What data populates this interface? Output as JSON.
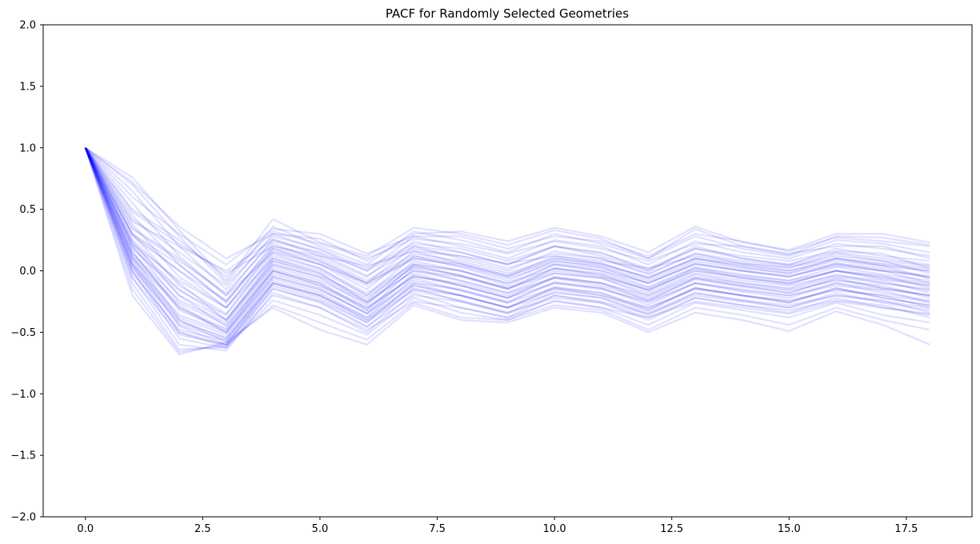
{
  "chart_data": {
    "type": "line",
    "title": "PACF for Randomly Selected Geometries",
    "xlabel": "",
    "ylabel": "",
    "xlim": [
      -0.9,
      18.9
    ],
    "ylim": [
      -2.0,
      2.0
    ],
    "x_ticks": [
      0.0,
      2.5,
      5.0,
      7.5,
      10.0,
      12.5,
      15.0,
      17.5
    ],
    "x_tick_labels": [
      "0.0",
      "2.5",
      "5.0",
      "7.5",
      "10.0",
      "12.5",
      "15.0",
      "17.5"
    ],
    "y_ticks": [
      -2.0,
      -1.5,
      -1.0,
      -0.5,
      0.0,
      0.5,
      1.0,
      1.5,
      2.0
    ],
    "y_tick_labels": [
      "−2.0",
      "−1.5",
      "−1.0",
      "−0.5",
      "0.0",
      "0.5",
      "1.0",
      "1.5",
      "2.0"
    ],
    "grid": false,
    "line_color": "#0000ff",
    "line_alpha": 0.12,
    "x": [
      0,
      1,
      2,
      3,
      4,
      5,
      6,
      7,
      8,
      9,
      10,
      11,
      12,
      13,
      14,
      15,
      16,
      17,
      18
    ],
    "series": [
      {
        "values": [
          1.0,
          0.76,
          0.33,
          -0.08,
          0.42,
          0.23,
          0.12,
          0.35,
          0.3,
          0.21,
          0.33,
          0.26,
          0.1,
          0.34,
          0.2,
          0.13,
          0.28,
          0.27,
          0.21
        ]
      },
      {
        "values": [
          1.0,
          0.7,
          0.28,
          -0.1,
          0.36,
          0.2,
          0.05,
          0.32,
          0.25,
          0.15,
          0.3,
          0.22,
          0.1,
          0.28,
          0.18,
          0.12,
          0.25,
          0.22,
          0.15
        ]
      },
      {
        "values": [
          1.0,
          0.65,
          0.2,
          -0.15,
          0.3,
          0.17,
          0.0,
          0.28,
          0.2,
          0.1,
          0.25,
          0.2,
          0.05,
          0.24,
          0.15,
          0.1,
          0.22,
          0.18,
          0.12
        ]
      },
      {
        "values": [
          1.0,
          0.55,
          0.12,
          -0.2,
          0.26,
          0.12,
          -0.05,
          0.24,
          0.15,
          0.05,
          0.2,
          0.15,
          0.0,
          0.18,
          0.1,
          0.05,
          0.18,
          0.12,
          0.08
        ]
      },
      {
        "values": [
          1.0,
          0.45,
          0.05,
          -0.26,
          0.22,
          0.08,
          -0.1,
          0.2,
          0.1,
          0.0,
          0.16,
          0.1,
          -0.03,
          0.14,
          0.06,
          0.02,
          0.14,
          0.08,
          0.04
        ]
      },
      {
        "values": [
          1.0,
          0.38,
          -0.05,
          -0.3,
          0.18,
          0.05,
          -0.15,
          0.16,
          0.06,
          -0.04,
          0.12,
          0.06,
          -0.06,
          0.1,
          0.03,
          -0.02,
          0.1,
          0.04,
          0.0
        ]
      },
      {
        "values": [
          1.0,
          0.3,
          -0.12,
          -0.35,
          0.14,
          0.02,
          -0.2,
          0.12,
          0.03,
          -0.08,
          0.08,
          0.03,
          -0.1,
          0.06,
          0.0,
          -0.05,
          0.06,
          0.0,
          -0.04
        ]
      },
      {
        "values": [
          1.0,
          0.24,
          -0.2,
          -0.4,
          0.1,
          -0.02,
          -0.24,
          0.08,
          0.0,
          -0.12,
          0.05,
          0.0,
          -0.13,
          0.03,
          -0.03,
          -0.08,
          0.03,
          -0.03,
          -0.08
        ]
      },
      {
        "values": [
          1.0,
          0.2,
          -0.26,
          -0.44,
          0.06,
          -0.06,
          -0.28,
          0.05,
          -0.04,
          -0.15,
          0.02,
          -0.03,
          -0.16,
          0.0,
          -0.06,
          -0.11,
          0.0,
          -0.07,
          -0.12
        ]
      },
      {
        "values": [
          1.0,
          0.16,
          -0.32,
          -0.48,
          0.02,
          -0.1,
          -0.32,
          0.02,
          -0.08,
          -0.18,
          -0.02,
          -0.06,
          -0.2,
          -0.03,
          -0.1,
          -0.14,
          -0.03,
          -0.1,
          -0.16
        ]
      },
      {
        "values": [
          1.0,
          0.12,
          -0.38,
          -0.52,
          -0.02,
          -0.14,
          -0.35,
          -0.02,
          -0.12,
          -0.22,
          -0.05,
          -0.1,
          -0.24,
          -0.07,
          -0.13,
          -0.18,
          -0.07,
          -0.14,
          -0.2
        ]
      },
      {
        "values": [
          1.0,
          0.08,
          -0.44,
          -0.56,
          -0.06,
          -0.18,
          -0.38,
          -0.06,
          -0.16,
          -0.26,
          -0.09,
          -0.14,
          -0.28,
          -0.1,
          -0.17,
          -0.22,
          -0.1,
          -0.18,
          -0.24
        ]
      },
      {
        "values": [
          1.0,
          0.04,
          -0.5,
          -0.6,
          -0.1,
          -0.22,
          -0.42,
          -0.1,
          -0.2,
          -0.3,
          -0.13,
          -0.18,
          -0.32,
          -0.14,
          -0.2,
          -0.26,
          -0.14,
          -0.22,
          -0.28
        ]
      },
      {
        "values": [
          1.0,
          0.0,
          -0.55,
          -0.63,
          -0.14,
          -0.26,
          -0.46,
          -0.14,
          -0.25,
          -0.34,
          -0.17,
          -0.22,
          -0.36,
          -0.18,
          -0.24,
          -0.3,
          -0.18,
          -0.26,
          -0.32
        ]
      },
      {
        "values": [
          1.0,
          -0.05,
          -0.6,
          -0.65,
          -0.18,
          -0.3,
          -0.5,
          -0.18,
          -0.3,
          -0.38,
          -0.2,
          -0.26,
          -0.4,
          -0.22,
          -0.28,
          -0.34,
          -0.22,
          -0.3,
          -0.36
        ]
      },
      {
        "values": [
          1.0,
          -0.1,
          -0.64,
          -0.62,
          -0.24,
          -0.36,
          -0.52,
          -0.22,
          -0.34,
          -0.4,
          -0.24,
          -0.3,
          -0.44,
          -0.26,
          -0.32,
          -0.38,
          -0.26,
          -0.36,
          -0.42
        ]
      },
      {
        "values": [
          1.0,
          -0.15,
          -0.66,
          -0.6,
          -0.28,
          -0.42,
          -0.56,
          -0.26,
          -0.38,
          -0.4,
          -0.28,
          -0.32,
          -0.48,
          -0.3,
          -0.36,
          -0.44,
          -0.3,
          -0.4,
          -0.48
        ]
      },
      {
        "values": [
          1.0,
          -0.2,
          -0.68,
          -0.58,
          -0.3,
          -0.48,
          -0.6,
          -0.28,
          -0.4,
          -0.42,
          -0.3,
          -0.34,
          -0.5,
          -0.34,
          -0.4,
          -0.49,
          -0.33,
          -0.44,
          -0.6
        ]
      },
      {
        "values": [
          1.0,
          0.72,
          0.36,
          0.1,
          0.3,
          0.26,
          0.08,
          0.3,
          0.32,
          0.24,
          0.35,
          0.28,
          0.15,
          0.36,
          0.23,
          0.17,
          0.3,
          0.3,
          0.23
        ]
      },
      {
        "values": [
          1.0,
          0.6,
          0.3,
          0.05,
          0.34,
          0.3,
          0.14,
          0.28,
          0.28,
          0.18,
          0.28,
          0.24,
          0.12,
          0.3,
          0.24,
          0.16,
          0.27,
          0.24,
          0.2
        ]
      },
      {
        "values": [
          1.0,
          0.5,
          0.25,
          -0.05,
          0.32,
          0.22,
          0.1,
          0.26,
          0.22,
          0.14,
          0.24,
          0.18,
          0.08,
          0.22,
          0.2,
          0.14,
          0.2,
          0.2,
          0.1
        ]
      },
      {
        "values": [
          1.0,
          0.42,
          0.15,
          -0.12,
          0.28,
          0.18,
          0.02,
          0.22,
          0.18,
          0.08,
          0.2,
          0.14,
          0.02,
          0.18,
          0.12,
          0.08,
          0.16,
          0.14,
          0.02
        ]
      },
      {
        "values": [
          1.0,
          0.34,
          0.08,
          -0.18,
          0.24,
          0.14,
          -0.04,
          0.18,
          0.12,
          0.02,
          0.14,
          0.1,
          -0.02,
          0.14,
          0.08,
          0.04,
          0.12,
          0.08,
          -0.02
        ]
      },
      {
        "values": [
          1.0,
          0.28,
          0.0,
          -0.24,
          0.2,
          0.1,
          -0.08,
          0.14,
          0.08,
          -0.02,
          0.1,
          0.06,
          -0.06,
          0.1,
          0.04,
          0.0,
          0.08,
          0.04,
          -0.06
        ]
      },
      {
        "values": [
          1.0,
          0.22,
          -0.08,
          -0.3,
          0.16,
          0.06,
          -0.12,
          0.1,
          0.04,
          -0.06,
          0.06,
          0.02,
          -0.1,
          0.06,
          0.0,
          -0.04,
          0.04,
          0.0,
          -0.1
        ]
      },
      {
        "values": [
          1.0,
          0.18,
          -0.16,
          -0.36,
          0.12,
          0.02,
          -0.18,
          0.06,
          0.0,
          -0.1,
          0.02,
          -0.02,
          -0.14,
          0.02,
          -0.04,
          -0.08,
          0.0,
          -0.04,
          -0.14
        ]
      },
      {
        "values": [
          1.0,
          0.14,
          -0.24,
          -0.42,
          0.08,
          -0.04,
          -0.22,
          0.03,
          -0.04,
          -0.14,
          -0.02,
          -0.06,
          -0.18,
          -0.02,
          -0.08,
          -0.12,
          -0.04,
          -0.08,
          -0.18
        ]
      },
      {
        "values": [
          1.0,
          0.1,
          -0.3,
          -0.47,
          0.04,
          -0.08,
          -0.26,
          0.0,
          -0.08,
          -0.18,
          -0.06,
          -0.1,
          -0.22,
          -0.06,
          -0.12,
          -0.16,
          -0.08,
          -0.12,
          -0.22
        ]
      },
      {
        "values": [
          1.0,
          0.06,
          -0.36,
          -0.5,
          0.0,
          -0.12,
          -0.3,
          -0.04,
          -0.12,
          -0.22,
          -0.1,
          -0.14,
          -0.26,
          -0.1,
          -0.16,
          -0.2,
          -0.12,
          -0.16,
          -0.26
        ]
      },
      {
        "values": [
          1.0,
          0.02,
          -0.42,
          -0.54,
          -0.04,
          -0.16,
          -0.34,
          -0.08,
          -0.16,
          -0.26,
          -0.14,
          -0.18,
          -0.3,
          -0.14,
          -0.2,
          -0.24,
          -0.16,
          -0.2,
          -0.3
        ]
      },
      {
        "values": [
          1.0,
          -0.02,
          -0.48,
          -0.57,
          -0.08,
          -0.2,
          -0.38,
          -0.12,
          -0.2,
          -0.3,
          -0.18,
          -0.22,
          -0.34,
          -0.18,
          -0.24,
          -0.28,
          -0.2,
          -0.24,
          -0.34
        ]
      },
      {
        "values": [
          1.0,
          -0.06,
          -0.52,
          -0.6,
          -0.12,
          -0.24,
          -0.42,
          -0.16,
          -0.24,
          -0.34,
          -0.22,
          -0.26,
          -0.38,
          -0.22,
          -0.28,
          -0.32,
          -0.24,
          -0.28,
          -0.38
        ]
      },
      {
        "values": [
          1.0,
          0.4,
          0.2,
          0.0,
          0.25,
          0.15,
          0.0,
          0.2,
          0.15,
          0.05,
          0.2,
          0.12,
          0.0,
          0.2,
          0.1,
          0.05,
          0.15,
          0.1,
          0.05
        ]
      },
      {
        "values": [
          1.0,
          0.35,
          0.1,
          -0.2,
          0.15,
          0.05,
          -0.1,
          0.1,
          0.05,
          -0.05,
          0.1,
          0.05,
          -0.05,
          0.1,
          0.05,
          0.0,
          0.1,
          0.05,
          0.0
        ]
      },
      {
        "values": [
          1.0,
          0.3,
          0.0,
          -0.3,
          0.1,
          0.0,
          -0.2,
          0.05,
          0.0,
          -0.1,
          0.05,
          0.0,
          -0.1,
          0.05,
          0.0,
          -0.05,
          0.05,
          0.0,
          -0.05
        ]
      },
      {
        "values": [
          1.0,
          0.25,
          -0.1,
          -0.4,
          0.05,
          -0.05,
          -0.25,
          0.0,
          -0.05,
          -0.15,
          0.0,
          -0.05,
          -0.15,
          0.0,
          -0.05,
          -0.1,
          0.0,
          -0.05,
          -0.1
        ]
      },
      {
        "values": [
          1.0,
          0.2,
          -0.2,
          -0.45,
          0.0,
          -0.1,
          -0.3,
          -0.05,
          -0.1,
          -0.2,
          -0.05,
          -0.1,
          -0.2,
          -0.05,
          -0.1,
          -0.15,
          -0.05,
          -0.1,
          -0.15
        ]
      },
      {
        "values": [
          1.0,
          0.15,
          -0.3,
          -0.5,
          -0.05,
          -0.15,
          -0.35,
          -0.1,
          -0.15,
          -0.25,
          -0.1,
          -0.15,
          -0.25,
          -0.1,
          -0.15,
          -0.2,
          -0.1,
          -0.15,
          -0.2
        ]
      },
      {
        "values": [
          1.0,
          0.1,
          -0.4,
          -0.55,
          -0.1,
          -0.2,
          -0.4,
          -0.15,
          -0.2,
          -0.3,
          -0.15,
          -0.2,
          -0.3,
          -0.15,
          -0.2,
          -0.25,
          -0.15,
          -0.2,
          -0.25
        ]
      },
      {
        "values": [
          1.0,
          0.05,
          -0.45,
          -0.6,
          -0.15,
          -0.25,
          -0.45,
          -0.2,
          -0.25,
          -0.35,
          -0.2,
          -0.25,
          -0.35,
          -0.2,
          -0.25,
          -0.3,
          -0.2,
          -0.25,
          -0.3
        ]
      },
      {
        "values": [
          1.0,
          0.0,
          -0.5,
          -0.62,
          -0.2,
          -0.3,
          -0.48,
          -0.25,
          -0.3,
          -0.38,
          -0.25,
          -0.3,
          -0.38,
          -0.25,
          -0.3,
          -0.35,
          -0.25,
          -0.3,
          -0.35
        ]
      },
      {
        "values": [
          1.0,
          0.48,
          0.22,
          -0.02,
          0.2,
          0.12,
          0.04,
          0.16,
          0.12,
          0.06,
          0.12,
          0.08,
          0.02,
          0.12,
          0.06,
          0.03,
          0.1,
          0.06,
          0.02
        ]
      },
      {
        "values": [
          1.0,
          0.3,
          0.05,
          -0.25,
          0.18,
          0.08,
          -0.1,
          0.12,
          0.06,
          -0.04,
          0.08,
          0.04,
          -0.08,
          0.08,
          0.02,
          -0.02,
          0.06,
          0.02,
          -0.06
        ]
      },
      {
        "values": [
          1.0,
          0.22,
          -0.15,
          -0.4,
          0.08,
          -0.02,
          -0.26,
          0.04,
          -0.04,
          -0.14,
          0.02,
          -0.04,
          -0.16,
          0.02,
          -0.06,
          -0.1,
          0.0,
          -0.06,
          -0.12
        ]
      },
      {
        "values": [
          1.0,
          0.12,
          -0.28,
          -0.5,
          0.0,
          -0.12,
          -0.32,
          -0.04,
          -0.12,
          -0.22,
          -0.06,
          -0.12,
          -0.24,
          -0.06,
          -0.12,
          -0.18,
          -0.06,
          -0.14,
          -0.2
        ]
      },
      {
        "values": [
          1.0,
          0.05,
          -0.4,
          -0.58,
          -0.1,
          -0.2,
          -0.4,
          -0.12,
          -0.2,
          -0.3,
          -0.14,
          -0.2,
          -0.32,
          -0.14,
          -0.2,
          -0.26,
          -0.14,
          -0.22,
          -0.28
        ]
      }
    ]
  }
}
